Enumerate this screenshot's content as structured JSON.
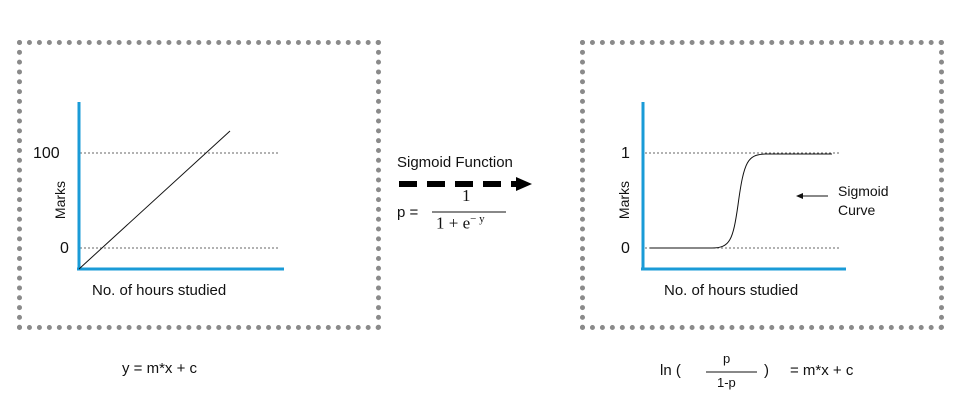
{
  "left_chart": {
    "y_axis_label": "Marks",
    "x_axis_label": "No. of hours studied",
    "y_ticks": [
      "100",
      "0"
    ],
    "formula": "y = m*x + c"
  },
  "middle": {
    "function_label": "Sigmoid Function",
    "p_prefix": "p  =",
    "numerator": "1",
    "denominator_base": "1 + e",
    "denominator_exponent": "− y"
  },
  "right_chart": {
    "y_axis_label": "Marks",
    "x_axis_label": "No. of hours studied",
    "y_ticks": [
      "1",
      "0"
    ],
    "annotation_line1": "Sigmoid",
    "annotation_line2": "Curve",
    "formula_ln": "ln (",
    "formula_num": "p",
    "formula_den": "1-p",
    "formula_close": ")",
    "formula_rhs": "= m*x + c"
  },
  "colors": {
    "axis": "#1a9bd7",
    "border": "#8a8a8a",
    "line": "#111111",
    "gridline": "#666666"
  },
  "chart_data": [
    {
      "type": "line",
      "title": "",
      "xlabel": "No. of hours studied",
      "ylabel": "Marks",
      "y_ticks": [
        0,
        100
      ],
      "series": [
        {
          "x": [
            0,
            1
          ],
          "y": [
            0,
            1.3
          ],
          "shape": "linear"
        }
      ],
      "grid": "dotted lines at y=0 and y=100"
    },
    {
      "type": "line",
      "title": "",
      "xlabel": "No. of hours studied",
      "ylabel": "Marks",
      "y_ticks": [
        0,
        1
      ],
      "series": [
        {
          "shape": "sigmoid",
          "y_min": 0,
          "y_max": 1
        }
      ],
      "grid": "dotted lines at y=0 and y=1"
    }
  ]
}
